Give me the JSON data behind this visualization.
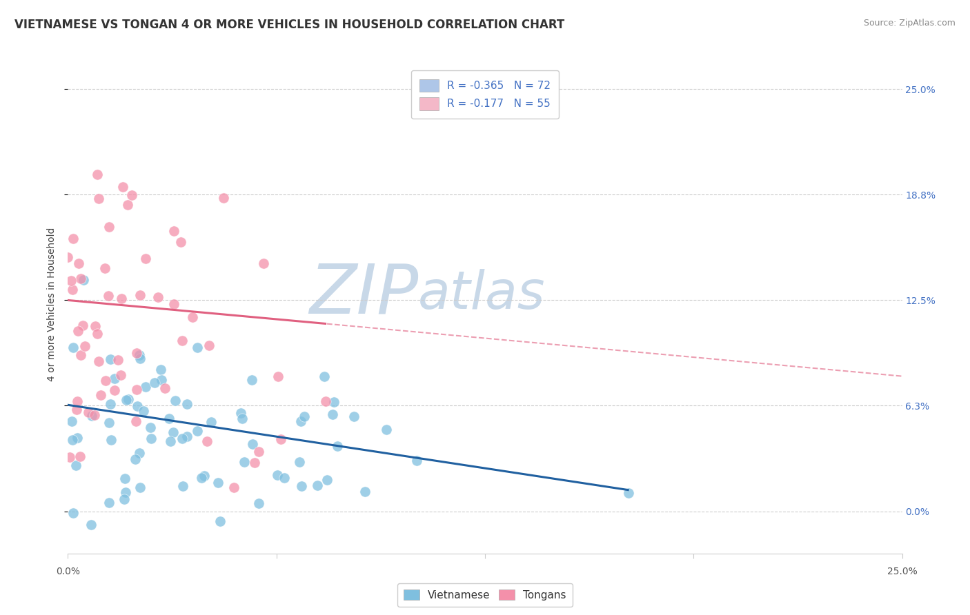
{
  "title": "VIETNAMESE VS TONGAN 4 OR MORE VEHICLES IN HOUSEHOLD CORRELATION CHART",
  "source": "Source: ZipAtlas.com",
  "ylabel": "4 or more Vehicles in Household",
  "xlim": [
    0.0,
    25.0
  ],
  "ylim": [
    -2.5,
    27.0
  ],
  "yticks": [
    0.0,
    6.25,
    12.5,
    18.75,
    25.0
  ],
  "right_ytick_labels": [
    "0.0%",
    "6.3%",
    "12.5%",
    "18.8%",
    "25.0%"
  ],
  "xtick_left_label": "0.0%",
  "xtick_right_label": "25.0%",
  "legend_entries": [
    {
      "color": "#aec6e8",
      "label": "R = -0.365   N = 72"
    },
    {
      "color": "#f4b8c8",
      "label": "R = -0.177   N = 55"
    }
  ],
  "vietnamese_color": "#7fbfdf",
  "tongan_color": "#f490aa",
  "vietnamese_line_color": "#2060a0",
  "tongan_line_color": "#e06080",
  "background_color": "#ffffff",
  "watermark_zip_color": "#c8d8e8",
  "watermark_atlas_color": "#c8d8e8",
  "R_vietnamese": -0.365,
  "N_vietnamese": 72,
  "R_tongan": -0.177,
  "N_tongan": 55,
  "title_fontsize": 12,
  "tick_fontsize": 10,
  "legend_fontsize": 11,
  "right_tick_color": "#4472c4",
  "title_color": "#333333",
  "source_color": "#888888",
  "grid_color": "#cccccc",
  "spine_color": "#cccccc"
}
